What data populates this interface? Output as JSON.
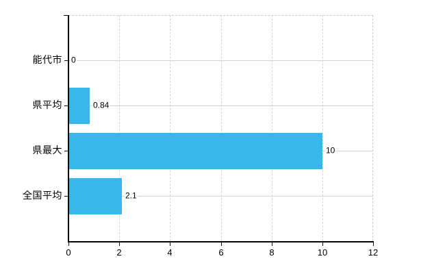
{
  "chart_data": {
    "type": "bar",
    "orientation": "horizontal",
    "title": "",
    "xlabel": "",
    "ylabel": "",
    "categories": [
      "能代市",
      "県平均",
      "県最大",
      "全国平均"
    ],
    "values": [
      0,
      0.84,
      10,
      2.1
    ],
    "value_labels": [
      "0",
      "0.84",
      "10",
      "2.1"
    ],
    "xlim": [
      0,
      12
    ],
    "xticks": [
      0,
      2,
      4,
      6,
      8,
      10,
      12
    ],
    "xtick_labels": [
      "0",
      "2",
      "4",
      "6",
      "8",
      "10",
      "12"
    ],
    "grid": true,
    "legend": false,
    "colors": {
      "bar": "#3ab7ea",
      "axis": "#000000",
      "text": "#000000",
      "gridline_vertical": "#d6d6d6",
      "gridline_horizontal": "#cdd6cd",
      "plot_border": "#c9c9c9",
      "background": "#ffffff"
    }
  }
}
